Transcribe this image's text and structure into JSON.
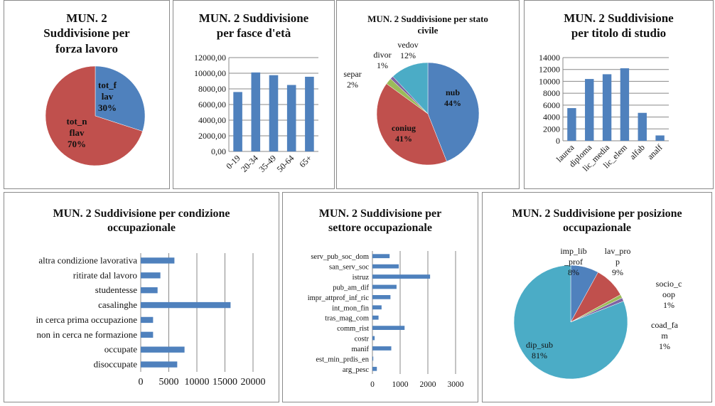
{
  "chart_data": [
    {
      "id": "c1",
      "type": "pie",
      "title": "MUN. 2 Suddivisione per forza lavoro",
      "slices": [
        {
          "label": "tot_flav",
          "value": 30,
          "pct": "30%",
          "color": "#4f81bd"
        },
        {
          "label": "tot_nflav",
          "value": 70,
          "pct": "70%",
          "color": "#c0504d"
        }
      ]
    },
    {
      "id": "c2",
      "type": "bar",
      "title": "MUN. 2 Suddivisione per fasce d'età",
      "categories": [
        "0-19",
        "20-34",
        "35-49",
        "50-64",
        "65+"
      ],
      "values": [
        7600,
        10100,
        9750,
        8500,
        9550
      ],
      "ylim": [
        0,
        12000
      ],
      "yticks": [
        "0,00",
        "2000,00",
        "4000,00",
        "6000,00",
        "8000,00",
        "10000,00",
        "12000,00"
      ],
      "color": "#4f81bd"
    },
    {
      "id": "c3",
      "type": "pie",
      "title": "MUN. 2 Suddivisione per stato civile",
      "slices": [
        {
          "label": "nub",
          "value": 44,
          "pct": "44%",
          "color": "#4f81bd"
        },
        {
          "label": "coniug",
          "value": 41,
          "pct": "41%",
          "color": "#c0504d"
        },
        {
          "label": "separ",
          "value": 2,
          "pct": "2%",
          "color": "#9bbb59"
        },
        {
          "label": "divor",
          "value": 1,
          "pct": "1%",
          "color": "#8064a2"
        },
        {
          "label": "vedov",
          "value": 12,
          "pct": "12%",
          "color": "#4bacc6"
        }
      ]
    },
    {
      "id": "c4",
      "type": "bar",
      "title": "MUN. 2 Suddivisione per titolo di studio",
      "categories": [
        "laurea",
        "diploma",
        "lic_media",
        "lic_elem",
        "alfab",
        "analf"
      ],
      "values": [
        5500,
        10400,
        11200,
        12200,
        4700,
        900
      ],
      "ylim": [
        0,
        14000
      ],
      "yticks": [
        "0",
        "2000",
        "4000",
        "6000",
        "8000",
        "10000",
        "12000",
        "14000"
      ],
      "color": "#4f81bd"
    },
    {
      "id": "c5",
      "type": "hbar",
      "title": "MUN. 2 Suddivisione per condizione occupazionale",
      "categories": [
        "altra condizione lavorativa",
        "ritirate dal lavoro",
        "studentesse",
        "casalinghe",
        "in cerca prima occupazione",
        "non in cerca ne formazione",
        "occupate",
        "disoccupate"
      ],
      "values": [
        6000,
        3500,
        3000,
        16000,
        2200,
        2200,
        7800,
        6500
      ],
      "xlim": [
        0,
        20000
      ],
      "xticks": [
        "0",
        "5000",
        "10000",
        "15000",
        "20000"
      ],
      "color": "#4f81bd"
    },
    {
      "id": "c6",
      "type": "hbar",
      "title": "MUN. 2 Suddivisione per settore occupazionale",
      "categories": [
        "serv_pub_soc_dom",
        "san_serv_soc",
        "istruz",
        "pub_am_dif",
        "impr_attprof_inf_ric",
        "int_mon_fin",
        "tras_mag_com",
        "comm_rist",
        "costr",
        "manif",
        "est_min_prdis_en",
        "arg_pesc"
      ],
      "values": [
        620,
        950,
        2080,
        870,
        650,
        330,
        220,
        1160,
        80,
        680,
        30,
        160
      ],
      "xlim": [
        0,
        3000
      ],
      "xticks": [
        "0",
        "1000",
        "2000",
        "3000"
      ],
      "color": "#4f81bd"
    },
    {
      "id": "c7",
      "type": "pie",
      "title": "MUN. 2 Suddivisione per posizione occupazionale",
      "slices": [
        {
          "label": "imp_lib_prof",
          "value": 8,
          "pct": "8%",
          "color": "#4f81bd"
        },
        {
          "label": "lav_prop",
          "value": 9,
          "pct": "9%",
          "color": "#c0504d"
        },
        {
          "label": "socio_coop",
          "value": 1,
          "pct": "1%",
          "color": "#9bbb59"
        },
        {
          "label": "coad_fam",
          "value": 1,
          "pct": "1%",
          "color": "#8064a2"
        },
        {
          "label": "dip_sub",
          "value": 81,
          "pct": "81%",
          "color": "#4bacc6"
        }
      ]
    }
  ]
}
